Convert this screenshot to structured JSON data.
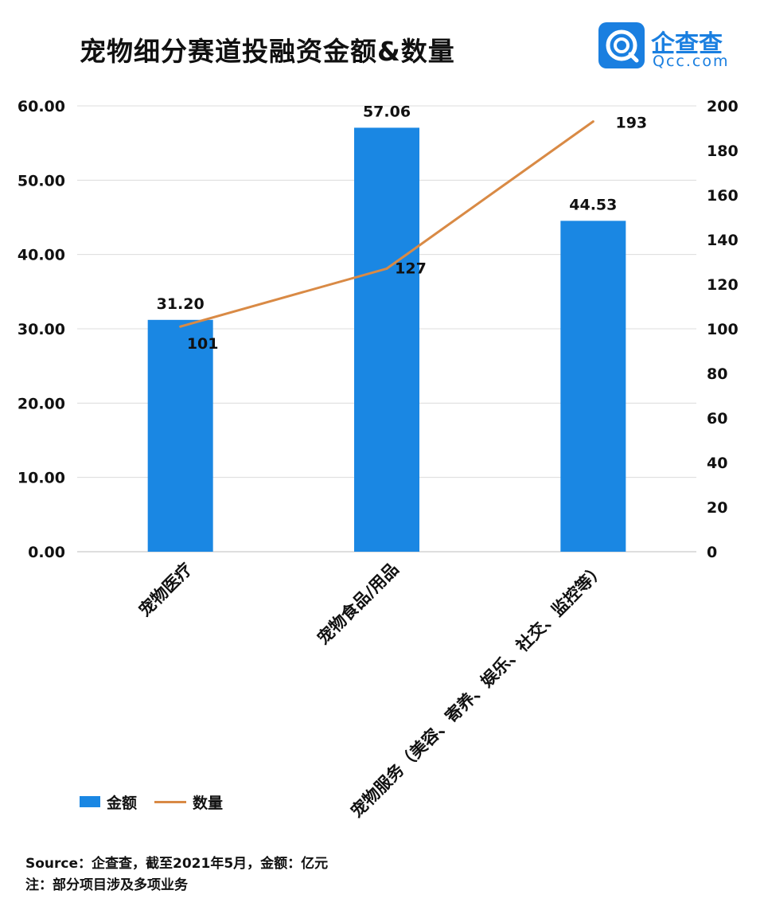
{
  "title": "宠物细分赛道投融资金额&数量",
  "logo": {
    "name_cn": "企查查",
    "name_en": "Qcc.com",
    "brand_color": "#1a7fe0"
  },
  "chart_data": {
    "type": "bar",
    "categories": [
      "宠物医疗",
      "宠物食品/用品",
      "宠物服务（美容、寄养、娱乐、社交、监控等）"
    ],
    "series": [
      {
        "name": "金额",
        "type": "bar",
        "axis": "left",
        "values": [
          31.2,
          57.06,
          44.53
        ],
        "labels": [
          "31.20",
          "57.06",
          "44.53"
        ],
        "color": "#1a87e3"
      },
      {
        "name": "数量",
        "type": "line",
        "axis": "right",
        "values": [
          101,
          127,
          193
        ],
        "labels": [
          "101",
          "127",
          "193"
        ],
        "color": "#d98a45"
      }
    ],
    "y_left": {
      "min": 0,
      "max": 60,
      "ticks": [
        "0.00",
        "10.00",
        "20.00",
        "30.00",
        "40.00",
        "50.00",
        "60.00"
      ]
    },
    "y_right": {
      "min": 0,
      "max": 200,
      "ticks": [
        "0",
        "20",
        "40",
        "60",
        "80",
        "100",
        "120",
        "140",
        "160",
        "180",
        "200"
      ]
    },
    "grid": true,
    "legend_position": "bottom-left"
  },
  "legend": {
    "bar_label": "金额",
    "line_label": "数量"
  },
  "footer": {
    "source": "Source：企查查，截至2021年5月，金额：亿元",
    "note": "注：部分项目涉及多项业务"
  }
}
